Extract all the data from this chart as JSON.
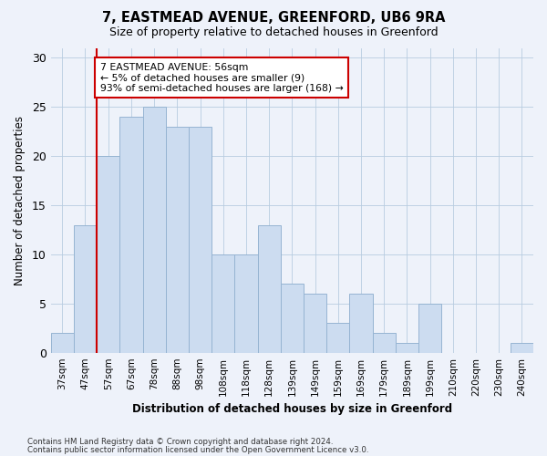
{
  "title1": "7, EASTMEAD AVENUE, GREENFORD, UB6 9RA",
  "title2": "Size of property relative to detached houses in Greenford",
  "xlabel": "Distribution of detached houses by size in Greenford",
  "ylabel": "Number of detached properties",
  "categories": [
    "37sqm",
    "47sqm",
    "57sqm",
    "67sqm",
    "78sqm",
    "88sqm",
    "98sqm",
    "108sqm",
    "118sqm",
    "128sqm",
    "139sqm",
    "149sqm",
    "159sqm",
    "169sqm",
    "179sqm",
    "189sqm",
    "199sqm",
    "210sqm",
    "220sqm",
    "230sqm",
    "240sqm"
  ],
  "values": [
    2,
    13,
    20,
    24,
    25,
    23,
    23,
    10,
    10,
    13,
    7,
    6,
    3,
    6,
    2,
    1,
    5,
    0,
    0,
    0,
    1
  ],
  "bar_color": "#ccdcf0",
  "bar_edgecolor": "#96b4d2",
  "vline_x_idx": 2,
  "vline_color": "#cc0000",
  "annotation_text": "7 EASTMEAD AVENUE: 56sqm\n← 5% of detached houses are smaller (9)\n93% of semi-detached houses are larger (168) →",
  "annotation_box_edgecolor": "#cc0000",
  "annotation_box_facecolor": "#ffffff",
  "ylim": [
    0,
    31
  ],
  "yticks": [
    0,
    5,
    10,
    15,
    20,
    25,
    30
  ],
  "footnote1": "Contains HM Land Registry data © Crown copyright and database right 2024.",
  "footnote2": "Contains public sector information licensed under the Open Government Licence v3.0.",
  "background_color": "#eef2fa"
}
